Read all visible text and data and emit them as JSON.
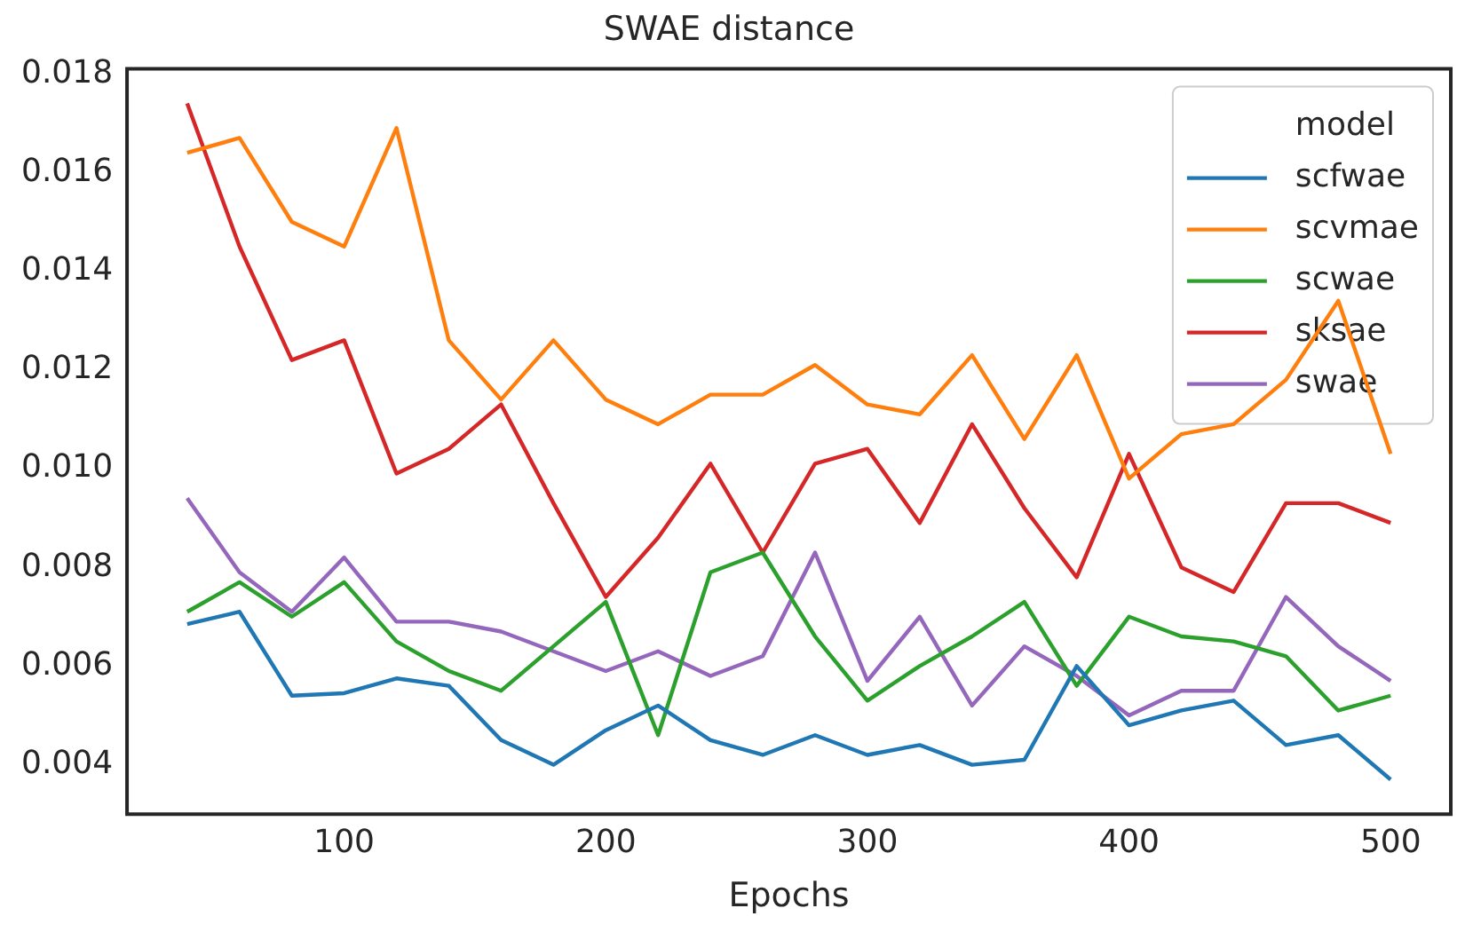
{
  "chart_data": {
    "type": "line",
    "title": "SWAE distance",
    "xlabel": "Epochs",
    "legend_title": "model",
    "legend": "top right",
    "grid": false,
    "marker": "none",
    "line_style": "solid",
    "x": [
      40,
      60,
      80,
      100,
      120,
      140,
      160,
      180,
      200,
      220,
      240,
      260,
      280,
      300,
      320,
      340,
      360,
      380,
      400,
      420,
      440,
      460,
      480,
      500
    ],
    "xlim": [
      17,
      523
    ],
    "xticks": [
      100,
      200,
      300,
      400,
      500
    ],
    "ylim": [
      0.003,
      0.0181
    ],
    "yticks": [
      {
        "value": 0.004,
        "label": "0.004"
      },
      {
        "value": 0.006,
        "label": "0.006"
      },
      {
        "value": 0.008,
        "label": "0.008"
      },
      {
        "value": 0.01,
        "label": "0.010"
      },
      {
        "value": 0.012,
        "label": "0.012"
      },
      {
        "value": 0.014,
        "label": "0.014"
      },
      {
        "value": 0.016,
        "label": "0.016"
      },
      {
        "value": 0.018,
        "label": "0.018"
      }
    ],
    "series": [
      {
        "name": "scfwae",
        "color": "#1f77b4",
        "values": [
          0.00685,
          0.0071,
          0.0054,
          0.00545,
          0.00575,
          0.0056,
          0.0045,
          0.004,
          0.0047,
          0.0052,
          0.0045,
          0.0042,
          0.0046,
          0.0042,
          0.0044,
          0.004,
          0.0041,
          0.006,
          0.0048,
          0.0051,
          0.0053,
          0.0044,
          0.0046,
          0.0037
        ]
      },
      {
        "name": "scvmae",
        "color": "#ff7f0e",
        "values": [
          0.0164,
          0.0167,
          0.015,
          0.0145,
          0.0169,
          0.0126,
          0.0114,
          0.0126,
          0.0114,
          0.0109,
          0.0115,
          0.0115,
          0.0121,
          0.0113,
          0.0111,
          0.0123,
          0.0106,
          0.0123,
          0.0098,
          0.0107,
          0.0109,
          0.0118,
          0.0134,
          0.0103
        ]
      },
      {
        "name": "scwae",
        "color": "#2ca02c",
        "values": [
          0.0071,
          0.0077,
          0.007,
          0.0077,
          0.0065,
          0.0059,
          0.0055,
          0.0064,
          0.0073,
          0.0046,
          0.0079,
          0.0083,
          0.0066,
          0.0053,
          0.006,
          0.0066,
          0.0073,
          0.0056,
          0.007,
          0.0066,
          0.0065,
          0.0062,
          0.0051,
          0.0054
        ]
      },
      {
        "name": "sksae",
        "color": "#d62728",
        "values": [
          0.0174,
          0.0145,
          0.0122,
          0.0126,
          0.0099,
          0.0104,
          0.0113,
          0.0093,
          0.0074,
          0.0086,
          0.0101,
          0.0083,
          0.0101,
          0.0104,
          0.0089,
          0.0109,
          0.0092,
          0.0078,
          0.0103,
          0.008,
          0.0075,
          0.0093,
          0.0093,
          0.0089
        ]
      },
      {
        "name": "swae",
        "color": "#9467bd",
        "values": [
          0.0094,
          0.0079,
          0.0071,
          0.0082,
          0.0069,
          0.0069,
          0.0067,
          0.0063,
          0.0059,
          0.0063,
          0.0058,
          0.0062,
          0.0083,
          0.0057,
          0.007,
          0.0052,
          0.0064,
          0.0058,
          0.005,
          0.0055,
          0.0055,
          0.0074,
          0.0064,
          0.0057
        ]
      }
    ]
  }
}
